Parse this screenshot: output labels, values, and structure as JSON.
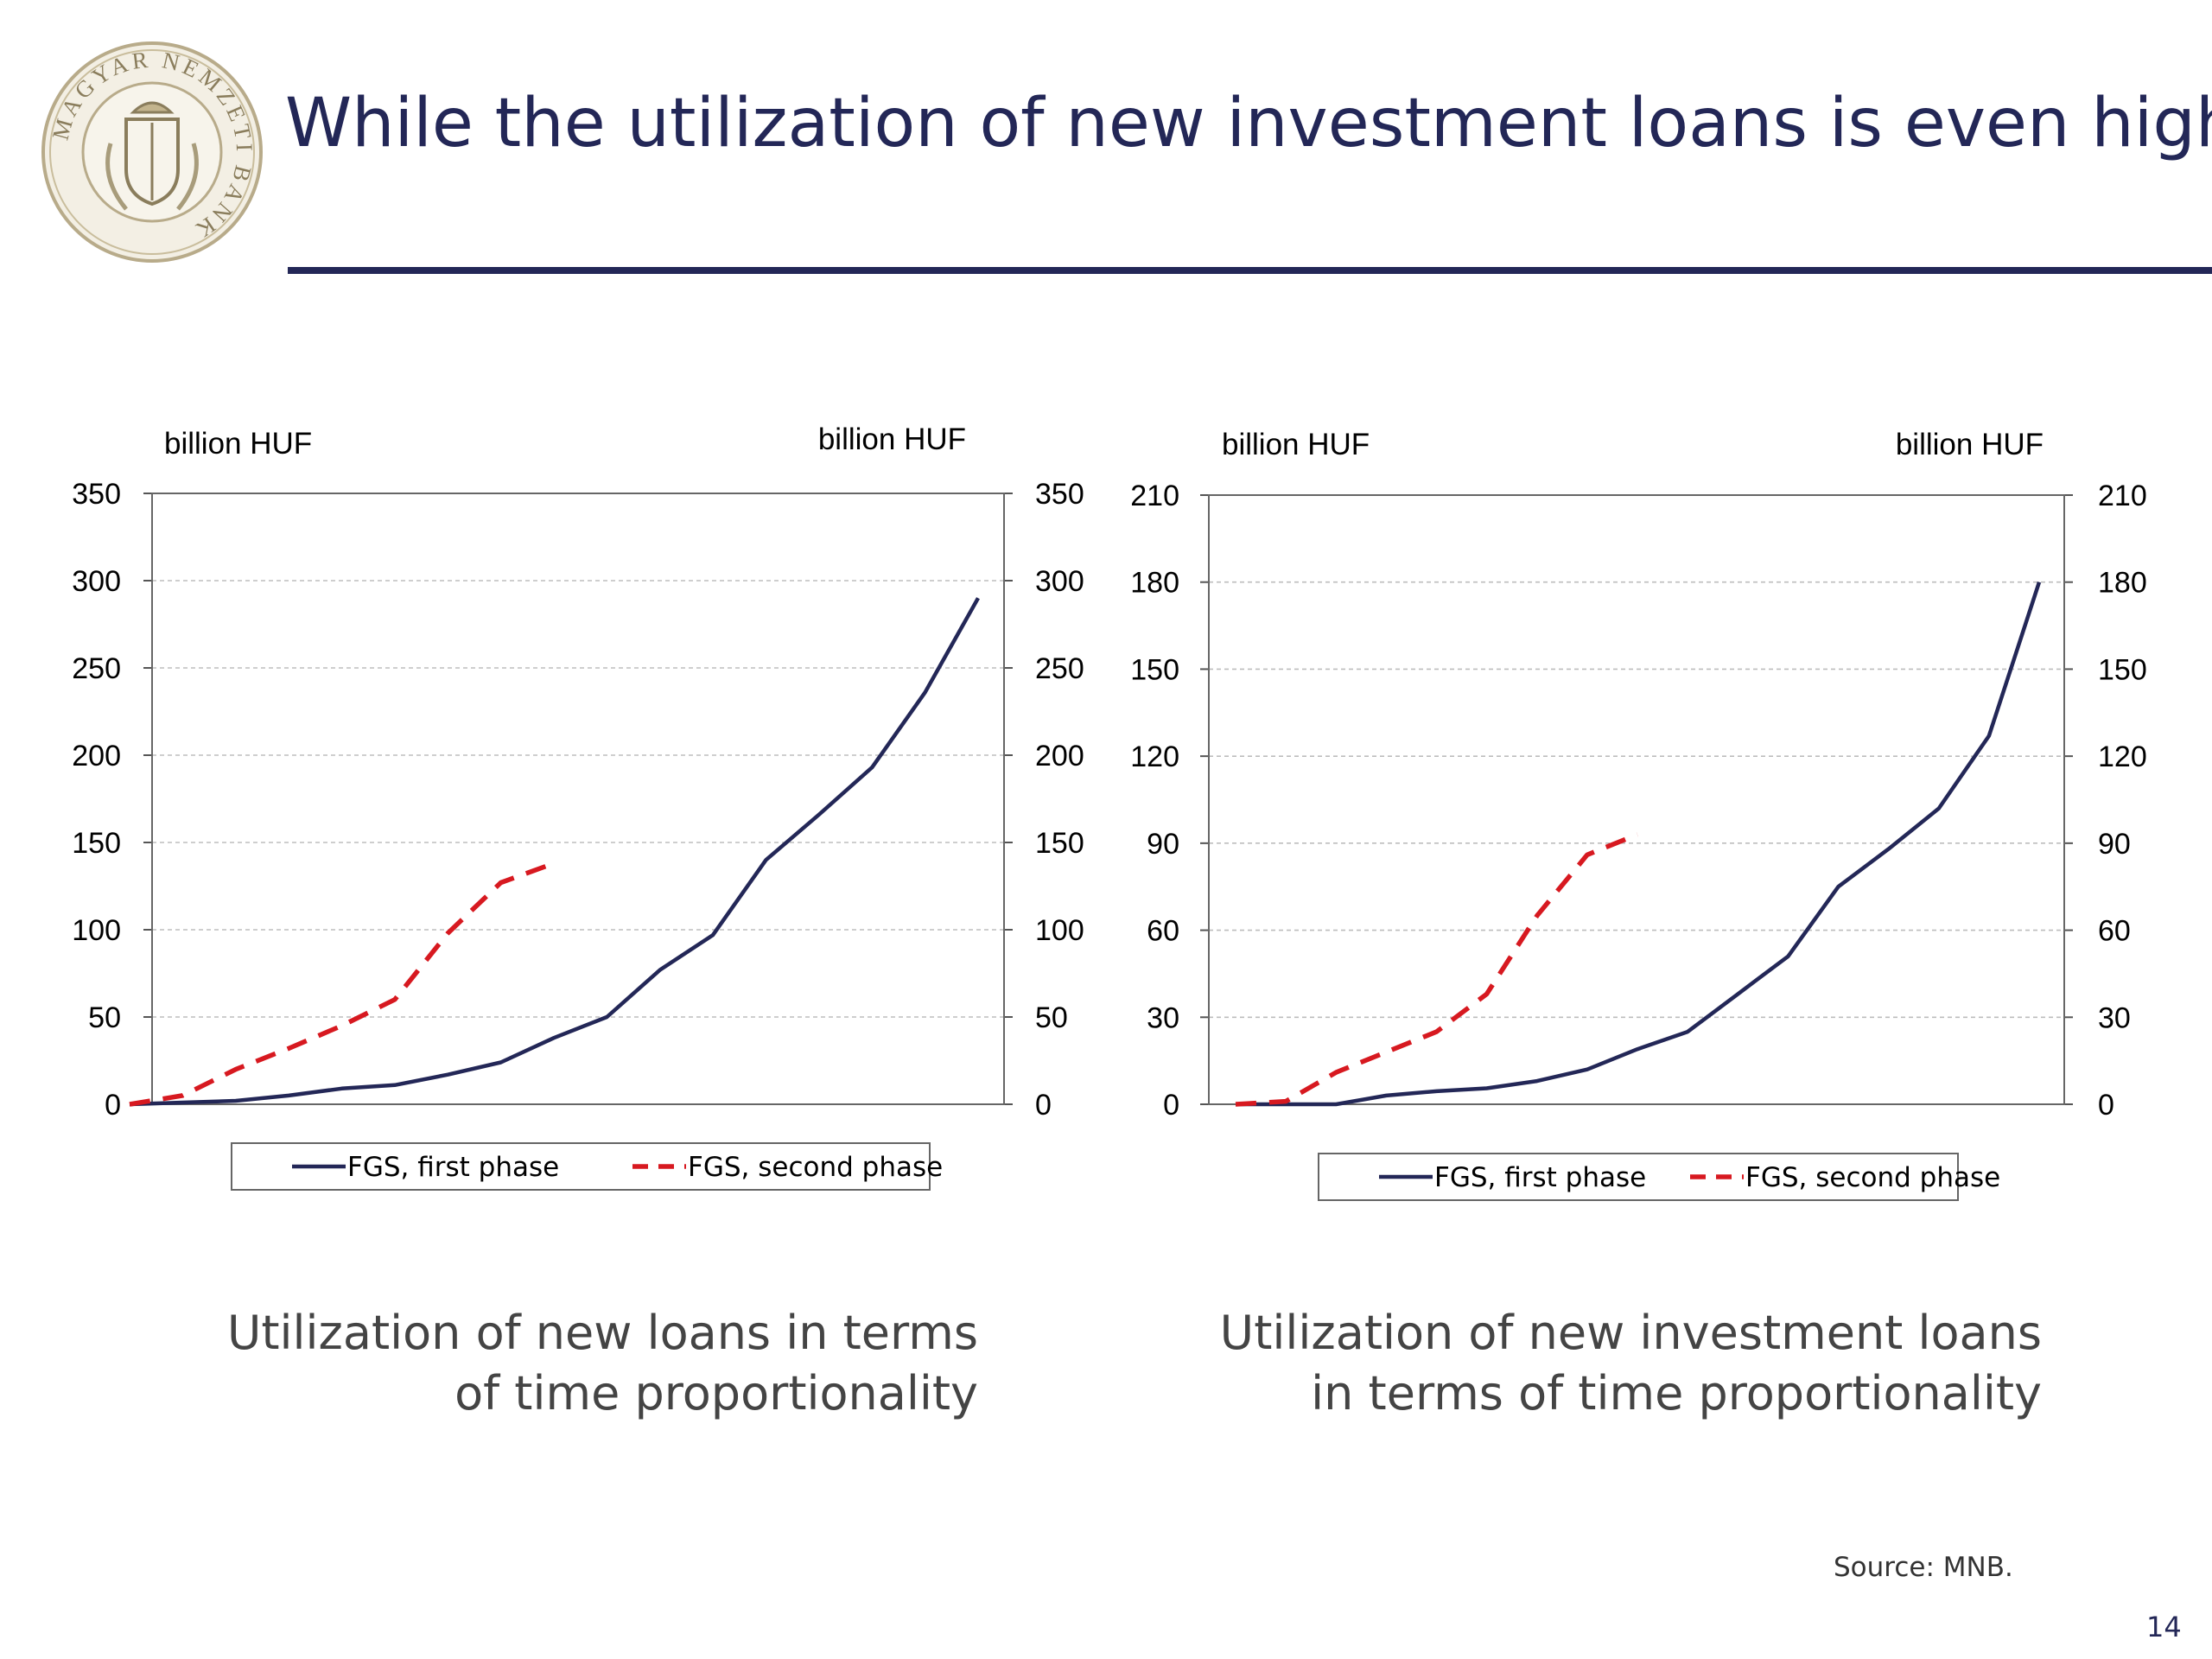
{
  "slide": {
    "title": "While the utilization of new investment loans is even higher",
    "source": "Source: MNB.",
    "page_number": "14",
    "logo_text": "MAGYAR NEMZETI BANK",
    "colors": {
      "title": "#232757",
      "first_phase": "#232757",
      "second_phase": "#d71920",
      "grid": "#bdbdbd"
    }
  },
  "chart_data": [
    {
      "type": "line",
      "caption_lines": [
        "Utilization of new loans in terms",
        "of time proportionality"
      ],
      "y_unit_left": "billion HUF",
      "y_unit_right": "billion HUF",
      "ylim": [
        0,
        350
      ],
      "y_ticks": [
        0,
        50,
        100,
        150,
        200,
        250,
        300,
        350
      ],
      "grid": "horizontal dashed",
      "legend": "bottom",
      "n_points": 17,
      "series": [
        {
          "name": "FGS, first phase",
          "style": "solid",
          "color": "#232757",
          "values": [
            0,
            1,
            2,
            5,
            9,
            11,
            17,
            24,
            38,
            50,
            77,
            97,
            140,
            166,
            193,
            236,
            290
          ]
        },
        {
          "name": "FGS, second phase",
          "style": "dashed",
          "color": "#d71920",
          "values": [
            0,
            5,
            20,
            32,
            45,
            60,
            98,
            127,
            138
          ]
        }
      ]
    },
    {
      "type": "line",
      "caption_lines": [
        "Utilization of new investment loans",
        "in terms of time proportionality"
      ],
      "y_unit_left": "billion HUF",
      "y_unit_right": "billion HUF",
      "ylim": [
        0,
        210
      ],
      "y_ticks": [
        0,
        30,
        60,
        90,
        120,
        150,
        180,
        210
      ],
      "grid": "horizontal dashed",
      "legend": "bottom",
      "n_points": 17,
      "series": [
        {
          "name": "FGS, first phase",
          "style": "solid",
          "color": "#232757",
          "values": [
            0,
            0,
            0,
            3,
            4.5,
            5.5,
            8,
            12,
            19,
            25,
            38,
            51,
            75,
            88,
            102,
            127,
            180
          ]
        },
        {
          "name": "FGS, second phase",
          "style": "dashed",
          "color": "#d71920",
          "values": [
            0,
            1,
            11,
            18,
            25,
            38,
            65,
            86,
            93
          ]
        }
      ]
    }
  ]
}
